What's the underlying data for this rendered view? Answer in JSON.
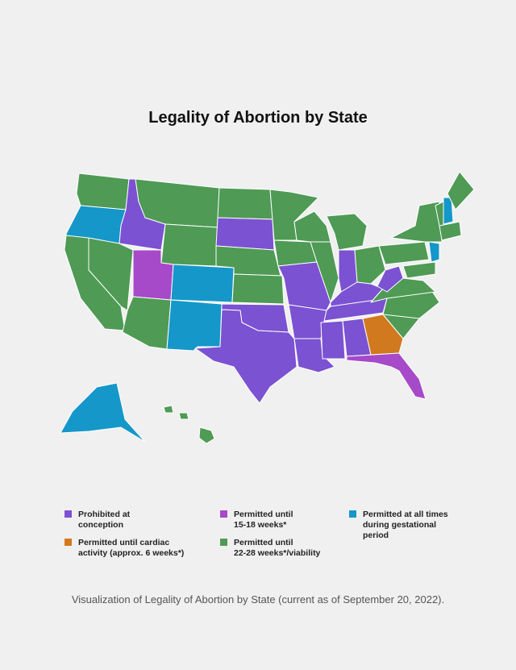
{
  "title": "Legality of Abortion by State",
  "legend": [
    {
      "lines": [
        "Prohibited at",
        "conception"
      ],
      "color": "#7b52d1"
    },
    {
      "lines": [
        "Permitted until",
        "15-18 weeks*"
      ],
      "color": "#a64ac9"
    },
    {
      "lines": [
        "Permitted at all times",
        "during gestational",
        "period"
      ],
      "color": "#1597c9"
    },
    {
      "lines": [
        "Permitted until cardiac",
        "activity (approx. 6 weeks*)"
      ],
      "color": "#d1791f"
    },
    {
      "lines": [
        "Permitted until",
        "22-28 weeks*/viability"
      ],
      "color": "#4f9a55"
    }
  ],
  "caption": "Visualization of Legality of Abortion by State (current as of September 20, 2022)."
}
